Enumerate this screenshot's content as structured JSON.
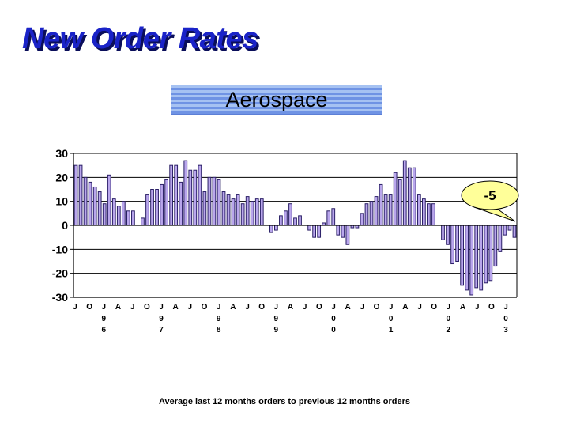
{
  "slide": {
    "title": "New Order Rates",
    "subtitle": "Aerospace",
    "footer": "Average last 12 months orders to previous 12 months orders",
    "callout_label": "-5",
    "colors": {
      "title": "#1a23c8",
      "bar_fill": "#b9a6ec",
      "bar_stroke": "#2a1f66",
      "callout_fill": "#ffff99"
    }
  },
  "chart_data": {
    "type": "bar",
    "title": "Aerospace",
    "ylim": [
      -30,
      30
    ],
    "y_ticks": [
      "30",
      "20",
      "10",
      "0",
      "-10",
      "-20",
      "-30"
    ],
    "grid": true,
    "x_tick_labels": [
      {
        "month": "J",
        "year": ""
      },
      {
        "month": "O",
        "year": ""
      },
      {
        "month": "J",
        "year": "96"
      },
      {
        "month": "A",
        "year": ""
      },
      {
        "month": "J",
        "year": ""
      },
      {
        "month": "O",
        "year": ""
      },
      {
        "month": "J",
        "year": "97"
      },
      {
        "month": "A",
        "year": ""
      },
      {
        "month": "J",
        "year": ""
      },
      {
        "month": "O",
        "year": ""
      },
      {
        "month": "J",
        "year": "98"
      },
      {
        "month": "A",
        "year": ""
      },
      {
        "month": "J",
        "year": ""
      },
      {
        "month": "O",
        "year": ""
      },
      {
        "month": "J",
        "year": "99"
      },
      {
        "month": "A",
        "year": ""
      },
      {
        "month": "J",
        "year": ""
      },
      {
        "month": "O",
        "year": ""
      },
      {
        "month": "J",
        "year": "00"
      },
      {
        "month": "A",
        "year": ""
      },
      {
        "month": "J",
        "year": ""
      },
      {
        "month": "O",
        "year": ""
      },
      {
        "month": "J",
        "year": "01"
      },
      {
        "month": "A",
        "year": ""
      },
      {
        "month": "J",
        "year": ""
      },
      {
        "month": "O",
        "year": ""
      },
      {
        "month": "J",
        "year": "02"
      },
      {
        "month": "A",
        "year": ""
      },
      {
        "month": "J",
        "year": ""
      },
      {
        "month": "O",
        "year": ""
      },
      {
        "month": "J",
        "year": "03"
      }
    ],
    "values": [
      25,
      25,
      20,
      18,
      16,
      14,
      9,
      21,
      11,
      8,
      10,
      6,
      6,
      0,
      3,
      13,
      15,
      15,
      17,
      19,
      25,
      25,
      18,
      27,
      23,
      23,
      25,
      14,
      20,
      20,
      19,
      14,
      13,
      11,
      13,
      9,
      12,
      10,
      11,
      11,
      0,
      -3,
      -2,
      4,
      6,
      9,
      3,
      4,
      0,
      -2,
      -5,
      -5,
      1,
      6,
      7,
      -4,
      -5,
      -8,
      -1,
      -1,
      5,
      9,
      10,
      12,
      17,
      13,
      13,
      22,
      19,
      27,
      24,
      24,
      13,
      11,
      9,
      9,
      0,
      -6,
      -8,
      -16,
      -15,
      -25,
      -27,
      -29,
      -26,
      -27,
      -24,
      -23,
      -17,
      -11,
      -4,
      -2,
      -5
    ]
  }
}
